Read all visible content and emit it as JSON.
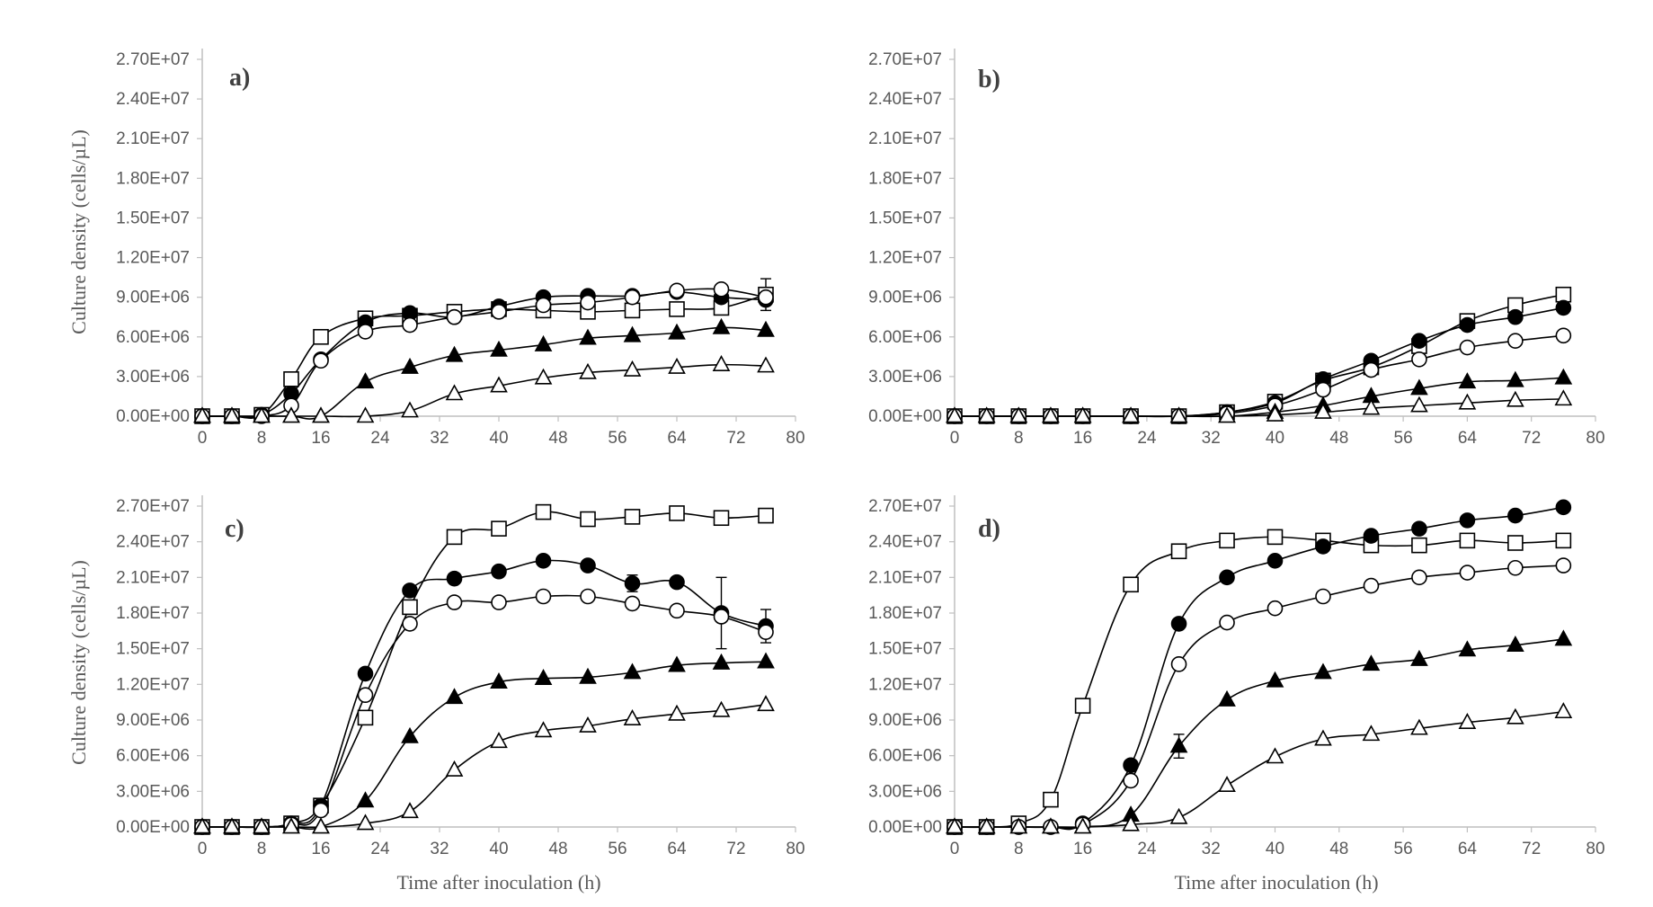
{
  "figure": {
    "ylabel": "Culture density (cells/µL)",
    "xlabel": "Time after inoculation (h)"
  },
  "chart_data": [
    {
      "type": "line",
      "panel": "a)",
      "xlabel": "",
      "ylabel": "Culture density (cells/µL)",
      "xlim": [
        0,
        80
      ],
      "ylim": [
        0,
        27000000
      ],
      "xticks": [
        "0",
        "8",
        "16",
        "24",
        "32",
        "40",
        "48",
        "56",
        "64",
        "72",
        "80"
      ],
      "yticks": [
        "0.00E+00",
        "3.00E+06",
        "6.00E+06",
        "9.00E+06",
        "1.20E+07",
        "1.50E+07",
        "1.80E+07",
        "2.10E+07",
        "2.40E+07",
        "2.70E+07"
      ],
      "x": [
        0,
        4,
        8,
        12,
        16,
        22,
        28,
        34,
        40,
        46,
        52,
        58,
        64,
        70,
        76
      ],
      "series": [
        {
          "name": "open square",
          "marker": "square",
          "fill": "open",
          "values": [
            0,
            0,
            100000,
            2800000,
            6000000,
            7400000,
            7600000,
            7900000,
            8100000,
            8000000,
            7900000,
            8000000,
            8100000,
            8200000,
            9200000
          ],
          "err": [
            0,
            0,
            0,
            0,
            0,
            0,
            0,
            0,
            0,
            0,
            0,
            0,
            0,
            0,
            1200000
          ]
        },
        {
          "name": "filled circle",
          "marker": "circle",
          "fill": "filled",
          "values": [
            0,
            0,
            100000,
            1700000,
            4300000,
            7100000,
            7800000,
            7500000,
            8300000,
            9000000,
            9100000,
            9100000,
            9400000,
            9000000,
            8800000
          ],
          "err": [
            0,
            0,
            0,
            0,
            0,
            0,
            0,
            0,
            0,
            0,
            0,
            0,
            0,
            0,
            0
          ]
        },
        {
          "name": "open circle",
          "marker": "circle",
          "fill": "open",
          "values": [
            0,
            0,
            0,
            800000,
            4200000,
            6400000,
            6900000,
            7500000,
            7900000,
            8400000,
            8600000,
            9000000,
            9500000,
            9600000,
            9000000
          ],
          "err": [
            0,
            0,
            0,
            0,
            0,
            0,
            0,
            0,
            0,
            0,
            0,
            0,
            0,
            0,
            0
          ]
        },
        {
          "name": "filled triangle",
          "marker": "triangle",
          "fill": "filled",
          "values": [
            0,
            0,
            0,
            0,
            0,
            2600000,
            3700000,
            4600000,
            5000000,
            5400000,
            5900000,
            6100000,
            6300000,
            6700000,
            6500000
          ],
          "err": [
            0,
            0,
            0,
            0,
            0,
            0,
            0,
            0,
            0,
            0,
            0,
            0,
            0,
            0,
            0
          ]
        },
        {
          "name": "open triangle",
          "marker": "triangle",
          "fill": "open",
          "values": [
            0,
            0,
            0,
            0,
            0,
            0,
            400000,
            1700000,
            2300000,
            2900000,
            3300000,
            3500000,
            3700000,
            3900000,
            3800000
          ],
          "err": [
            0,
            0,
            0,
            0,
            0,
            0,
            0,
            0,
            0,
            0,
            0,
            0,
            0,
            0,
            0
          ]
        }
      ]
    },
    {
      "type": "line",
      "panel": "b)",
      "xlabel": "",
      "ylabel": "",
      "xlim": [
        0,
        80
      ],
      "ylim": [
        0,
        27000000
      ],
      "xticks": [
        "0",
        "8",
        "16",
        "24",
        "32",
        "40",
        "48",
        "56",
        "64",
        "72",
        "80"
      ],
      "yticks": [
        "0.00E+00",
        "3.00E+06",
        "6.00E+06",
        "9.00E+06",
        "1.20E+07",
        "1.50E+07",
        "1.80E+07",
        "2.10E+07",
        "2.40E+07",
        "2.70E+07"
      ],
      "x": [
        0,
        4,
        8,
        12,
        16,
        22,
        28,
        34,
        40,
        46,
        52,
        58,
        64,
        70,
        76
      ],
      "series": [
        {
          "name": "open square",
          "marker": "square",
          "fill": "open",
          "values": [
            0,
            0,
            0,
            0,
            0,
            0,
            0,
            300000,
            1100000,
            2700000,
            3700000,
            5300000,
            7200000,
            8400000,
            9200000
          ],
          "err": [
            0,
            0,
            0,
            0,
            0,
            0,
            0,
            0,
            0,
            0,
            0,
            0,
            0,
            0,
            0
          ]
        },
        {
          "name": "filled circle",
          "marker": "circle",
          "fill": "filled",
          "values": [
            0,
            0,
            0,
            0,
            0,
            0,
            0,
            300000,
            1000000,
            2800000,
            4200000,
            5700000,
            6900000,
            7500000,
            8200000
          ],
          "err": [
            0,
            0,
            0,
            0,
            0,
            0,
            0,
            0,
            0,
            0,
            0,
            0,
            0,
            0,
            0
          ]
        },
        {
          "name": "open circle",
          "marker": "circle",
          "fill": "open",
          "values": [
            0,
            0,
            0,
            0,
            0,
            0,
            0,
            200000,
            800000,
            2000000,
            3500000,
            4300000,
            5200000,
            5700000,
            6100000
          ],
          "err": [
            0,
            0,
            0,
            0,
            0,
            0,
            0,
            0,
            0,
            0,
            0,
            0,
            0,
            0,
            0
          ]
        },
        {
          "name": "filled triangle",
          "marker": "triangle",
          "fill": "filled",
          "values": [
            0,
            0,
            0,
            0,
            0,
            0,
            0,
            0,
            300000,
            800000,
            1500000,
            2100000,
            2600000,
            2700000,
            2900000
          ],
          "err": [
            0,
            0,
            0,
            0,
            0,
            0,
            0,
            0,
            0,
            0,
            0,
            0,
            0,
            0,
            0
          ]
        },
        {
          "name": "open triangle",
          "marker": "triangle",
          "fill": "open",
          "values": [
            0,
            0,
            0,
            0,
            0,
            0,
            0,
            0,
            100000,
            300000,
            600000,
            800000,
            1000000,
            1200000,
            1300000
          ],
          "err": [
            0,
            0,
            0,
            0,
            0,
            0,
            0,
            0,
            0,
            0,
            0,
            0,
            0,
            0,
            0
          ]
        }
      ]
    },
    {
      "type": "line",
      "panel": "c)",
      "xlabel": "Time after inoculation (h)",
      "ylabel": "Culture density (cells/µL)",
      "xlim": [
        0,
        80
      ],
      "ylim": [
        0,
        27000000
      ],
      "xticks": [
        "0",
        "8",
        "16",
        "24",
        "32",
        "40",
        "48",
        "56",
        "64",
        "72",
        "80"
      ],
      "yticks": [
        "0.00E+00",
        "3.00E+06",
        "6.00E+06",
        "9.00E+06",
        "1.20E+07",
        "1.50E+07",
        "1.80E+07",
        "2.10E+07",
        "2.40E+07",
        "2.70E+07"
      ],
      "x": [
        0,
        4,
        8,
        12,
        16,
        22,
        28,
        34,
        40,
        46,
        52,
        58,
        64,
        70,
        76
      ],
      "series": [
        {
          "name": "open square",
          "marker": "square",
          "fill": "open",
          "values": [
            0,
            0,
            0,
            300000,
            1800000,
            9200000,
            18500000,
            24400000,
            25100000,
            26500000,
            25900000,
            26100000,
            26400000,
            26000000,
            26200000
          ],
          "err": [
            0,
            0,
            0,
            0,
            0,
            0,
            0,
            0,
            0,
            0,
            0,
            0,
            0,
            0,
            0
          ]
        },
        {
          "name": "filled circle",
          "marker": "circle",
          "fill": "filled",
          "values": [
            0,
            0,
            0,
            300000,
            1800000,
            12900000,
            19900000,
            20900000,
            21500000,
            22400000,
            22000000,
            20500000,
            20600000,
            18000000,
            16900000
          ],
          "err": [
            0,
            0,
            0,
            0,
            0,
            0,
            0,
            0,
            0,
            0,
            0,
            700000,
            0,
            3000000,
            1400000
          ]
        },
        {
          "name": "open circle",
          "marker": "circle",
          "fill": "open",
          "values": [
            0,
            0,
            0,
            200000,
            1400000,
            11100000,
            17100000,
            18900000,
            18900000,
            19400000,
            19400000,
            18800000,
            18200000,
            17700000,
            16400000
          ],
          "err": [
            0,
            0,
            0,
            0,
            0,
            0,
            0,
            0,
            0,
            0,
            0,
            0,
            0,
            0,
            0
          ]
        },
        {
          "name": "filled triangle",
          "marker": "triangle",
          "fill": "filled",
          "values": [
            0,
            0,
            0,
            0,
            0,
            2200000,
            7600000,
            10900000,
            12200000,
            12500000,
            12600000,
            13000000,
            13600000,
            13800000,
            13900000
          ],
          "err": [
            0,
            0,
            0,
            0,
            0,
            0,
            0,
            0,
            0,
            0,
            0,
            0,
            0,
            0,
            0
          ]
        },
        {
          "name": "open triangle",
          "marker": "triangle",
          "fill": "open",
          "values": [
            0,
            0,
            0,
            0,
            0,
            300000,
            1300000,
            4800000,
            7200000,
            8100000,
            8500000,
            9100000,
            9500000,
            9800000,
            10300000
          ],
          "err": [
            0,
            0,
            0,
            0,
            0,
            0,
            0,
            0,
            0,
            0,
            0,
            0,
            0,
            0,
            0
          ]
        }
      ]
    },
    {
      "type": "line",
      "panel": "d)",
      "xlabel": "Time after inoculation (h)",
      "ylabel": "",
      "xlim": [
        0,
        80
      ],
      "ylim": [
        0,
        27000000
      ],
      "xticks": [
        "0",
        "8",
        "16",
        "24",
        "32",
        "40",
        "48",
        "56",
        "64",
        "72",
        "80"
      ],
      "yticks": [
        "0.00E+00",
        "3.00E+06",
        "6.00E+06",
        "9.00E+06",
        "1.20E+07",
        "1.50E+07",
        "1.80E+07",
        "2.10E+07",
        "2.40E+07",
        "2.70E+07"
      ],
      "x": [
        0,
        4,
        8,
        12,
        16,
        22,
        28,
        34,
        40,
        46,
        52,
        58,
        64,
        70,
        76
      ],
      "series": [
        {
          "name": "open square",
          "marker": "square",
          "fill": "open",
          "values": [
            0,
            0,
            300000,
            2300000,
            10200000,
            20400000,
            23200000,
            24100000,
            24400000,
            24100000,
            23700000,
            23700000,
            24100000,
            23900000,
            24100000
          ],
          "err": [
            0,
            0,
            0,
            0,
            0,
            0,
            0,
            0,
            0,
            0,
            0,
            0,
            0,
            0,
            0
          ]
        },
        {
          "name": "filled circle",
          "marker": "circle",
          "fill": "filled",
          "values": [
            0,
            0,
            0,
            0,
            300000,
            5200000,
            17100000,
            21000000,
            22400000,
            23600000,
            24500000,
            25100000,
            25800000,
            26200000,
            26900000
          ],
          "err": [
            0,
            0,
            0,
            0,
            0,
            0,
            0,
            0,
            0,
            0,
            0,
            0,
            0,
            0,
            0
          ]
        },
        {
          "name": "open circle",
          "marker": "circle",
          "fill": "open",
          "values": [
            0,
            0,
            0,
            0,
            200000,
            3900000,
            13700000,
            17200000,
            18400000,
            19400000,
            20300000,
            21000000,
            21400000,
            21800000,
            22000000
          ],
          "err": [
            0,
            0,
            0,
            0,
            0,
            0,
            0,
            0,
            0,
            0,
            0,
            0,
            0,
            0,
            0
          ]
        },
        {
          "name": "filled triangle",
          "marker": "triangle",
          "fill": "filled",
          "values": [
            0,
            0,
            0,
            0,
            0,
            1000000,
            6800000,
            10700000,
            12300000,
            13000000,
            13700000,
            14100000,
            14900000,
            15300000,
            15800000
          ],
          "err": [
            0,
            0,
            0,
            0,
            0,
            0,
            1000000,
            0,
            0,
            0,
            0,
            0,
            0,
            0,
            0
          ]
        },
        {
          "name": "open triangle",
          "marker": "triangle",
          "fill": "open",
          "values": [
            0,
            0,
            0,
            0,
            0,
            200000,
            800000,
            3500000,
            5900000,
            7400000,
            7800000,
            8300000,
            8800000,
            9200000,
            9700000
          ],
          "err": [
            0,
            0,
            0,
            0,
            0,
            0,
            0,
            0,
            0,
            0,
            0,
            0,
            0,
            0,
            0
          ]
        }
      ]
    }
  ]
}
